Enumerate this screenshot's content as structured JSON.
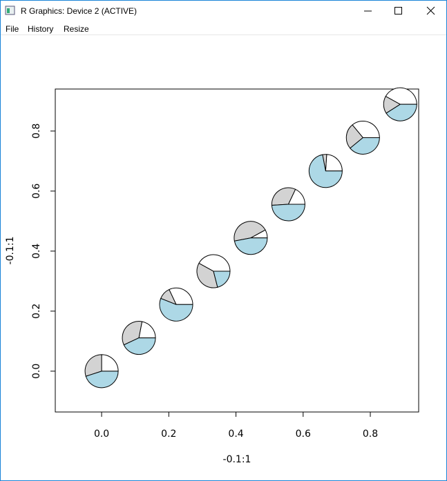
{
  "window": {
    "title": "R Graphics: Device 2 (ACTIVE)",
    "menu": [
      "File",
      "History",
      "Resize"
    ]
  },
  "chart_data": {
    "type": "scatter",
    "xlabel": "-0.1:1",
    "ylabel": "-0.1:1",
    "slice_colors": [
      "#ffffff",
      "#d3d3d3",
      "#add8e6"
    ],
    "pies": [
      {
        "x": 0.0,
        "y": 0.0,
        "values": [
          25,
          30,
          45
        ]
      },
      {
        "x": 0.111,
        "y": 0.111,
        "values": [
          22,
          35,
          43
        ]
      },
      {
        "x": 0.222,
        "y": 0.222,
        "values": [
          32,
          12,
          56
        ]
      },
      {
        "x": 0.333,
        "y": 0.333,
        "values": [
          42,
          37,
          21
        ]
      },
      {
        "x": 0.444,
        "y": 0.444,
        "values": [
          8,
          45,
          47
        ]
      },
      {
        "x": 0.556,
        "y": 0.556,
        "values": [
          18,
          33,
          49
        ]
      },
      {
        "x": 0.667,
        "y": 0.667,
        "values": [
          24,
          4,
          72
        ]
      },
      {
        "x": 0.778,
        "y": 0.778,
        "values": [
          36,
          25,
          39
        ]
      },
      {
        "x": 0.889,
        "y": 0.889,
        "values": [
          42,
          17,
          41
        ]
      }
    ],
    "xlim": [
      -0.138,
      0.944
    ],
    "ylim": [
      -0.136,
      0.94
    ],
    "xticks": [
      {
        "value": 0,
        "label": "0.0"
      },
      {
        "value": 0.2,
        "label": "0.2"
      },
      {
        "value": 0.4,
        "label": "0.4"
      },
      {
        "value": 0.6,
        "label": "0.6"
      },
      {
        "value": 0.8,
        "label": "0.8"
      }
    ],
    "yticks": [
      {
        "value": 0,
        "label": "0.0"
      },
      {
        "value": 0.2,
        "label": "0.2"
      },
      {
        "value": 0.4,
        "label": "0.4"
      },
      {
        "value": 0.6,
        "label": "0.6"
      },
      {
        "value": 0.8,
        "label": "0.8"
      }
    ]
  }
}
